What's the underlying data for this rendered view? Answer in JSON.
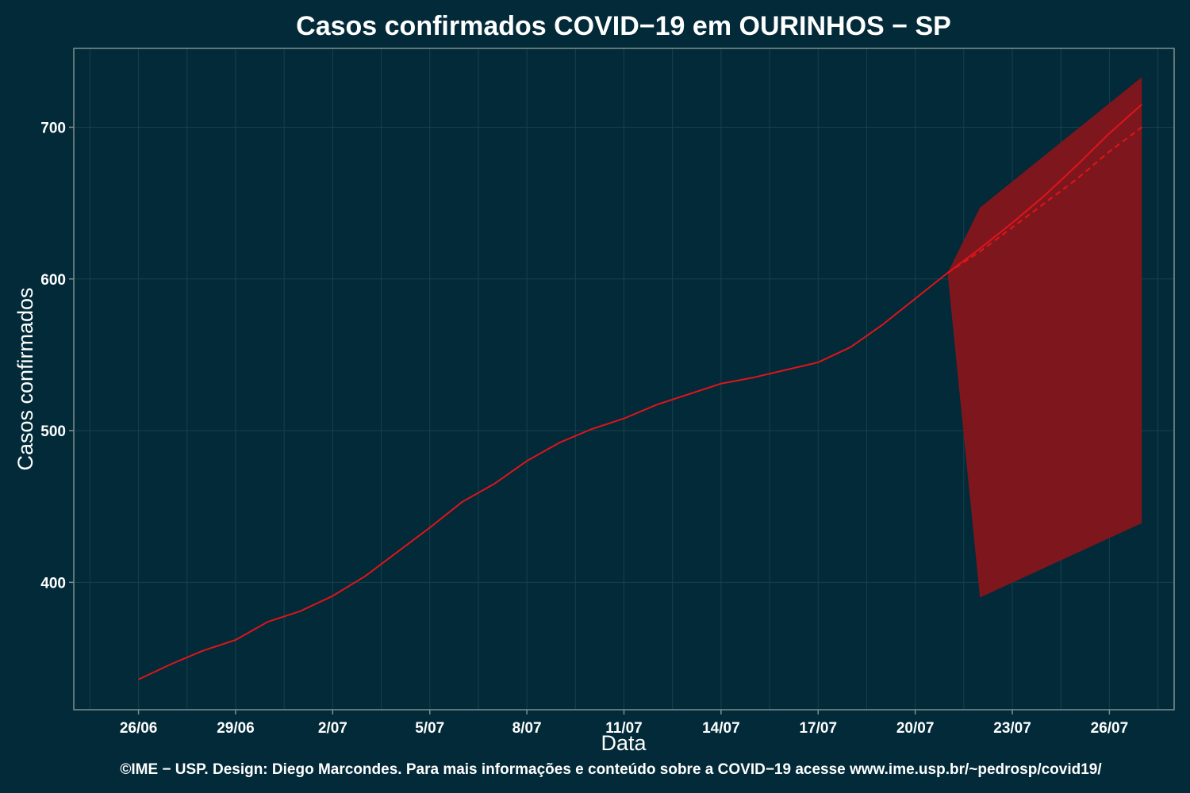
{
  "colors": {
    "background": "#022a38",
    "panel_border": "#7d8f93",
    "grid": "#18404c",
    "line": "#e0141a",
    "band": "#7e171d"
  },
  "footer": "©IME − USP. Design: Diego Marcondes. Para mais informações e conteúdo sobre a COVID−19 acesse www.ime.usp.br/~pedrosp/covid19/",
  "chart_data": {
    "type": "line",
    "title": "Casos confirmados COVID−19 em OURINHOS − SP",
    "xlabel": "Data",
    "ylabel": "Casos confirmados",
    "x_ticks": [
      "26/06",
      "29/06",
      "2/07",
      "5/07",
      "8/07",
      "11/07",
      "14/07",
      "17/07",
      "20/07",
      "23/07",
      "26/07"
    ],
    "x_tick_dates": [
      "2020-06-26",
      "2020-06-29",
      "2020-07-02",
      "2020-07-05",
      "2020-07-08",
      "2020-07-11",
      "2020-07-14",
      "2020-07-17",
      "2020-07-20",
      "2020-07-23",
      "2020-07-26"
    ],
    "xlim": [
      "2020-06-24",
      "2020-07-28"
    ],
    "y_ticks": [
      400,
      500,
      600,
      700
    ],
    "ylim": [
      316,
      752
    ],
    "grid": true,
    "legend": "none",
    "series": [
      {
        "style": "solid",
        "x": [
          "2020-06-26",
          "2020-06-27",
          "2020-06-28",
          "2020-06-29",
          "2020-06-30",
          "2020-07-01",
          "2020-07-02",
          "2020-07-03",
          "2020-07-04",
          "2020-07-05",
          "2020-07-06",
          "2020-07-07",
          "2020-07-08",
          "2020-07-09",
          "2020-07-10",
          "2020-07-11",
          "2020-07-12",
          "2020-07-13",
          "2020-07-14",
          "2020-07-15",
          "2020-07-16",
          "2020-07-17",
          "2020-07-18",
          "2020-07-19",
          "2020-07-20",
          "2020-07-21",
          "2020-07-22",
          "2020-07-23",
          "2020-07-24",
          "2020-07-25",
          "2020-07-26",
          "2020-07-27"
        ],
        "y": [
          336,
          346,
          355,
          362,
          374,
          381,
          391,
          404,
          420,
          436,
          453,
          465,
          480,
          492,
          501,
          508,
          517,
          524,
          531,
          535,
          540,
          545,
          555,
          570,
          587,
          604,
          620,
          637,
          655,
          675,
          696,
          715
        ]
      },
      {
        "style": "dashed",
        "x": [
          "2020-07-21",
          "2020-07-22",
          "2020-07-23",
          "2020-07-24",
          "2020-07-25",
          "2020-07-26",
          "2020-07-27"
        ],
        "y": [
          604,
          618,
          634,
          650,
          666,
          684,
          700
        ]
      }
    ],
    "band": {
      "x": [
        "2020-07-21",
        "2020-07-22",
        "2020-07-27"
      ],
      "lower": [
        604,
        390,
        439
      ],
      "upper": [
        604,
        647,
        733
      ]
    }
  }
}
